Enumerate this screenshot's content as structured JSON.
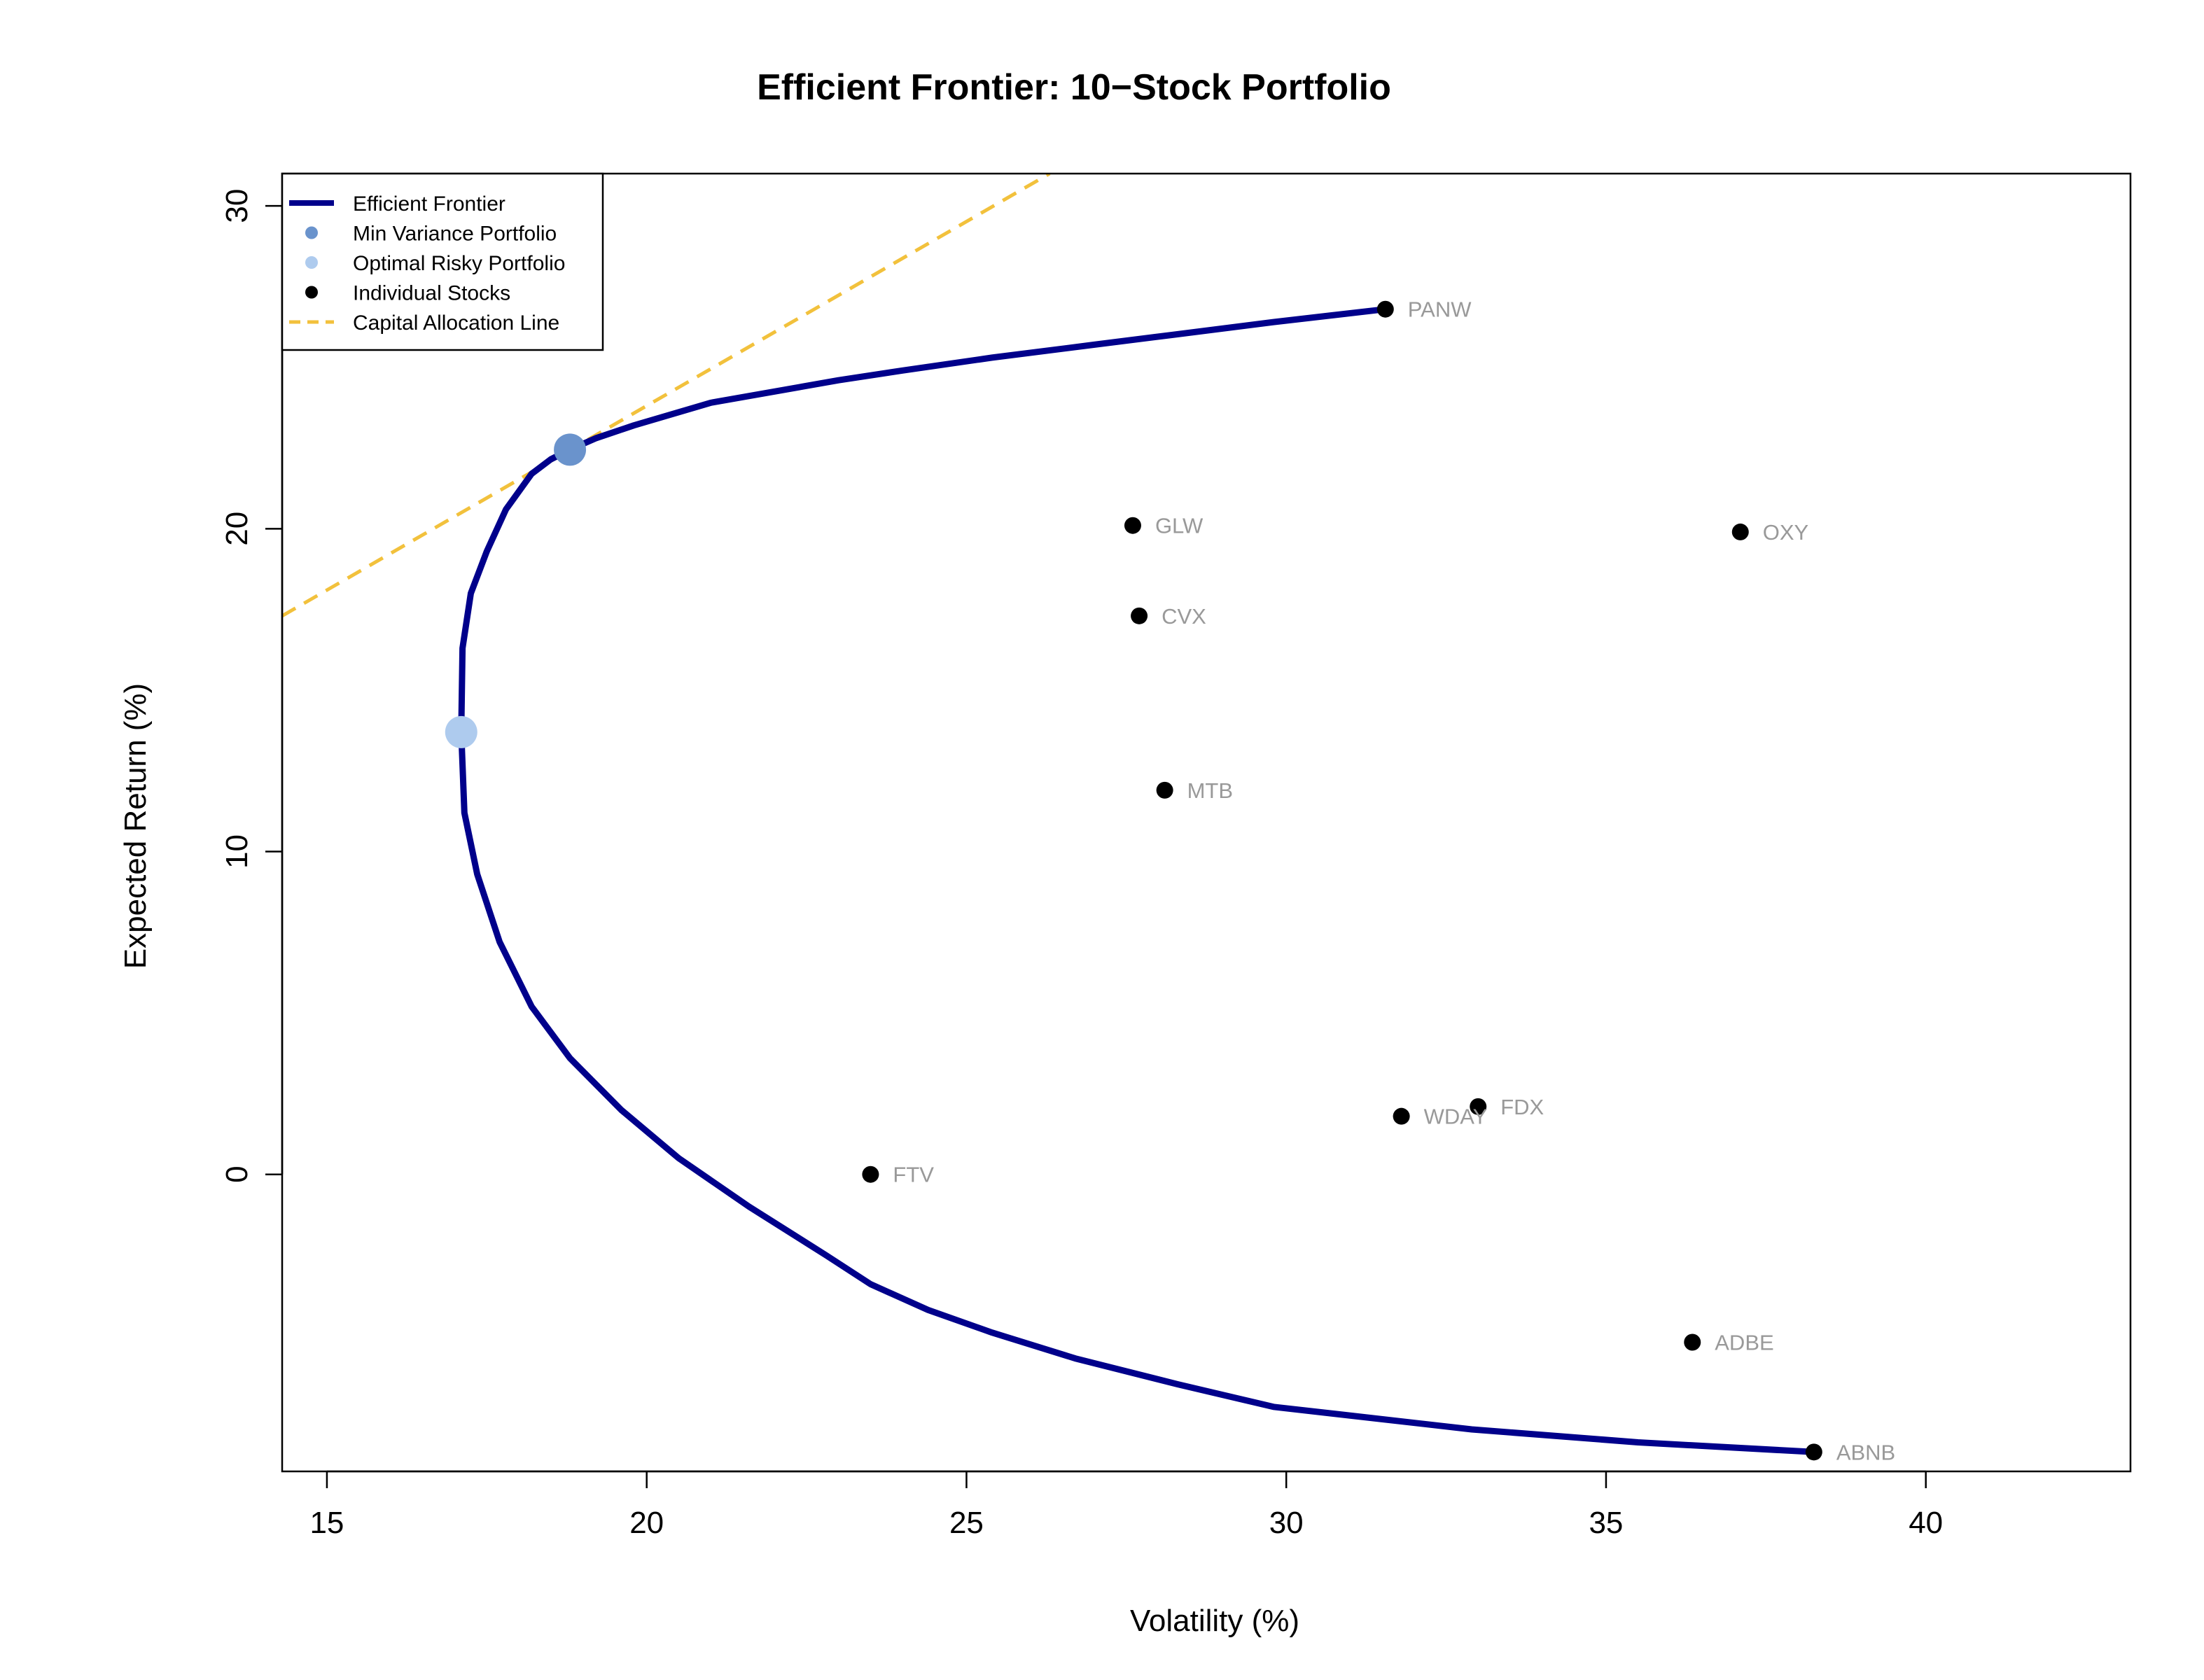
{
  "chart_data": {
    "type": "scatter",
    "title": "Efficient Frontier: 10−Stock Portfolio",
    "xlabel": "Volatility (%)",
    "ylabel": "Expected Return (%)",
    "xlim": [
      14.3,
      43.2
    ],
    "ylim": [
      -9.2,
      31.0
    ],
    "x_ticks": [
      "15",
      "20",
      "25",
      "30",
      "35",
      "40"
    ],
    "y_ticks": [
      "0",
      "10",
      "20",
      "30"
    ],
    "grid": false,
    "legend_position": "top-left",
    "legend": [
      {
        "label": "Efficient Frontier",
        "kind": "line",
        "color": "#00008B"
      },
      {
        "label": "Min Variance Portfolio",
        "kind": "point",
        "color": "#6A93CC"
      },
      {
        "label": "Optimal Risky Portfolio",
        "kind": "point",
        "color": "#AECBEE"
      },
      {
        "label": "Individual Stocks",
        "kind": "point",
        "color": "#000000"
      },
      {
        "label": "Capital Allocation Line",
        "kind": "dashed",
        "color": "#F2C13C"
      }
    ],
    "frontier": {
      "color": "#00008B",
      "x": [
        31.55,
        29.8,
        28.2,
        27.0,
        25.4,
        24.0,
        23.0,
        21.0,
        19.8,
        19.2,
        18.8,
        18.5,
        18.2,
        17.8,
        17.5,
        17.25,
        17.12,
        17.1,
        17.15,
        17.35,
        17.7,
        18.2,
        18.8,
        19.6,
        20.5,
        21.6,
        22.8,
        23.5,
        24.4,
        25.4,
        26.7,
        28.3,
        29.8,
        32.9,
        35.5,
        38.25
      ],
      "y": [
        26.8,
        26.4,
        26.0,
        25.7,
        25.3,
        24.9,
        24.6,
        23.9,
        23.2,
        22.8,
        22.45,
        22.15,
        21.7,
        20.6,
        19.3,
        18.0,
        16.3,
        13.7,
        11.2,
        9.3,
        7.2,
        5.2,
        3.6,
        2.0,
        0.5,
        -1.0,
        -2.5,
        -3.4,
        -4.2,
        -4.9,
        -5.7,
        -6.5,
        -7.2,
        -7.9,
        -8.3,
        -8.6
      ]
    },
    "min_variance": {
      "x": 18.8,
      "y": 22.45,
      "color": "#6A93CC"
    },
    "optimal_risky": {
      "x": 17.1,
      "y": 13.7,
      "color": "#AECBEE"
    },
    "cal": {
      "color": "#F2C13C",
      "x": [
        14.3,
        26.3
      ],
      "y": [
        17.3,
        31.0
      ]
    },
    "stocks": {
      "color": "#000000",
      "label_color": "#999999",
      "points": [
        {
          "name": "PANW",
          "x": 31.55,
          "y": 26.8
        },
        {
          "name": "GLW",
          "x": 27.6,
          "y": 20.1
        },
        {
          "name": "OXY",
          "x": 37.1,
          "y": 19.9
        },
        {
          "name": "CVX",
          "x": 27.7,
          "y": 17.3
        },
        {
          "name": "MTB",
          "x": 28.1,
          "y": 11.9
        },
        {
          "name": "FDX",
          "x": 33.0,
          "y": 2.1
        },
        {
          "name": "WDAY",
          "x": 31.8,
          "y": 1.8
        },
        {
          "name": "FTV",
          "x": 23.5,
          "y": 0.0
        },
        {
          "name": "ADBE",
          "x": 36.35,
          "y": -5.2
        },
        {
          "name": "ABNB",
          "x": 38.25,
          "y": -8.6
        }
      ]
    }
  }
}
